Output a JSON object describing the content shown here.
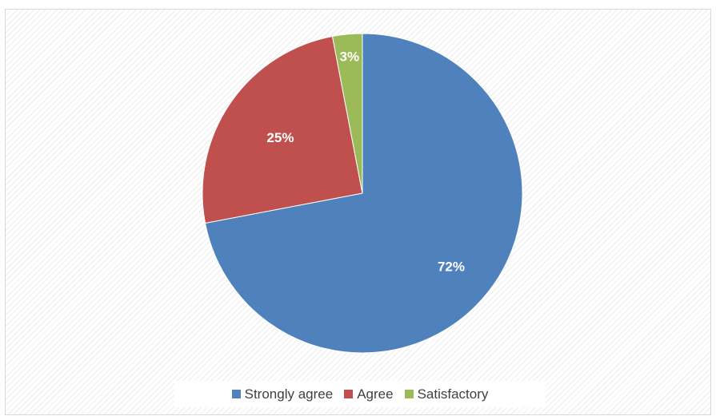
{
  "chart_data": {
    "type": "pie",
    "title": "",
    "categories": [
      "Strongly agree",
      "Agree",
      "Satisfactory"
    ],
    "values": [
      72,
      25,
      3
    ],
    "data_labels": [
      "72%",
      "25%",
      "3%"
    ],
    "colors": [
      "#4f81bd",
      "#c0504d",
      "#9bbb59"
    ],
    "start_angle_deg": 0,
    "direction": "clockwise",
    "legend_position": "bottom",
    "grid": false
  }
}
